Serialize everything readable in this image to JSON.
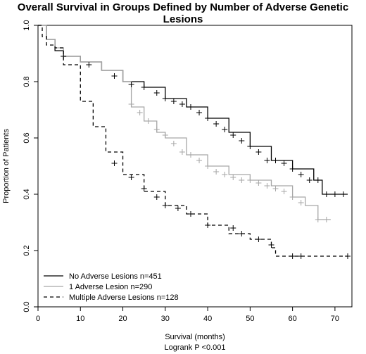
{
  "chart_data": {
    "type": "line",
    "title": "Overall Survival in Groups Defined by Number of Adverse Genetic Lesions",
    "xlabel": "Survival (months)",
    "xlabel_sub": "Logrank P <0.001",
    "ylabel": "Proportion of Patients",
    "xlim": [
      0,
      74
    ],
    "ylim": [
      0,
      1.0
    ],
    "xticks": [
      0,
      10,
      20,
      30,
      40,
      50,
      60,
      70
    ],
    "yticks": [
      0.0,
      0.2,
      0.4,
      0.6,
      0.8,
      1.0
    ],
    "grid": false,
    "legend_position": "bottom-left",
    "series": [
      {
        "name": "No Adverse Lesions n=451",
        "color": "#000000",
        "dash": "solid",
        "x": [
          0,
          2,
          4,
          6,
          10,
          15,
          20,
          25,
          30,
          35,
          40,
          45,
          50,
          55,
          60,
          65,
          67,
          73
        ],
        "y": [
          1.0,
          0.95,
          0.91,
          0.89,
          0.87,
          0.84,
          0.8,
          0.78,
          0.74,
          0.71,
          0.67,
          0.62,
          0.57,
          0.52,
          0.49,
          0.45,
          0.4,
          0.4
        ],
        "censor_x": [
          6,
          12,
          18,
          22,
          25,
          28,
          30,
          32,
          34,
          36,
          38,
          40,
          42,
          44,
          46,
          48,
          50,
          52,
          54,
          56,
          58,
          60,
          62,
          64,
          66,
          68,
          70,
          72
        ],
        "censor_y": [
          0.89,
          0.86,
          0.82,
          0.79,
          0.78,
          0.76,
          0.74,
          0.73,
          0.72,
          0.71,
          0.69,
          0.67,
          0.65,
          0.63,
          0.61,
          0.59,
          0.57,
          0.55,
          0.52,
          0.52,
          0.51,
          0.49,
          0.47,
          0.45,
          0.45,
          0.4,
          0.4,
          0.4
        ]
      },
      {
        "name": "1 Adverse Lesion n=290",
        "color": "#a6a6a6",
        "dash": "solid",
        "x": [
          0,
          2,
          4,
          6,
          10,
          15,
          20,
          22,
          25,
          28,
          30,
          35,
          40,
          45,
          50,
          55,
          60,
          63,
          66,
          69
        ],
        "y": [
          1.0,
          0.95,
          0.92,
          0.89,
          0.87,
          0.84,
          0.8,
          0.71,
          0.66,
          0.62,
          0.6,
          0.54,
          0.5,
          0.47,
          0.45,
          0.43,
          0.39,
          0.36,
          0.31,
          0.31
        ],
        "censor_x": [
          22,
          24,
          26,
          28,
          30,
          32,
          34,
          36,
          38,
          40,
          42,
          44,
          46,
          48,
          50,
          52,
          54,
          56,
          58,
          60,
          62,
          66,
          68
        ],
        "censor_y": [
          0.72,
          0.69,
          0.66,
          0.63,
          0.61,
          0.58,
          0.55,
          0.54,
          0.52,
          0.5,
          0.48,
          0.47,
          0.46,
          0.45,
          0.45,
          0.44,
          0.43,
          0.42,
          0.41,
          0.39,
          0.37,
          0.31,
          0.31
        ]
      },
      {
        "name": "Multiple Adverse Lesions n=128",
        "color": "#000000",
        "dash": "dashed",
        "x": [
          0,
          1,
          2,
          4,
          6,
          10,
          13,
          16,
          20,
          25,
          30,
          35,
          40,
          45,
          50,
          55,
          56,
          73
        ],
        "y": [
          1.0,
          0.96,
          0.93,
          0.92,
          0.86,
          0.73,
          0.64,
          0.55,
          0.47,
          0.41,
          0.36,
          0.33,
          0.29,
          0.26,
          0.24,
          0.21,
          0.18,
          0.18
        ],
        "censor_x": [
          18,
          22,
          25,
          28,
          30,
          33,
          36,
          40,
          46,
          48,
          52,
          55,
          60,
          62,
          73
        ],
        "censor_y": [
          0.51,
          0.46,
          0.42,
          0.39,
          0.36,
          0.35,
          0.33,
          0.29,
          0.28,
          0.26,
          0.24,
          0.22,
          0.18,
          0.18,
          0.18
        ]
      }
    ]
  }
}
